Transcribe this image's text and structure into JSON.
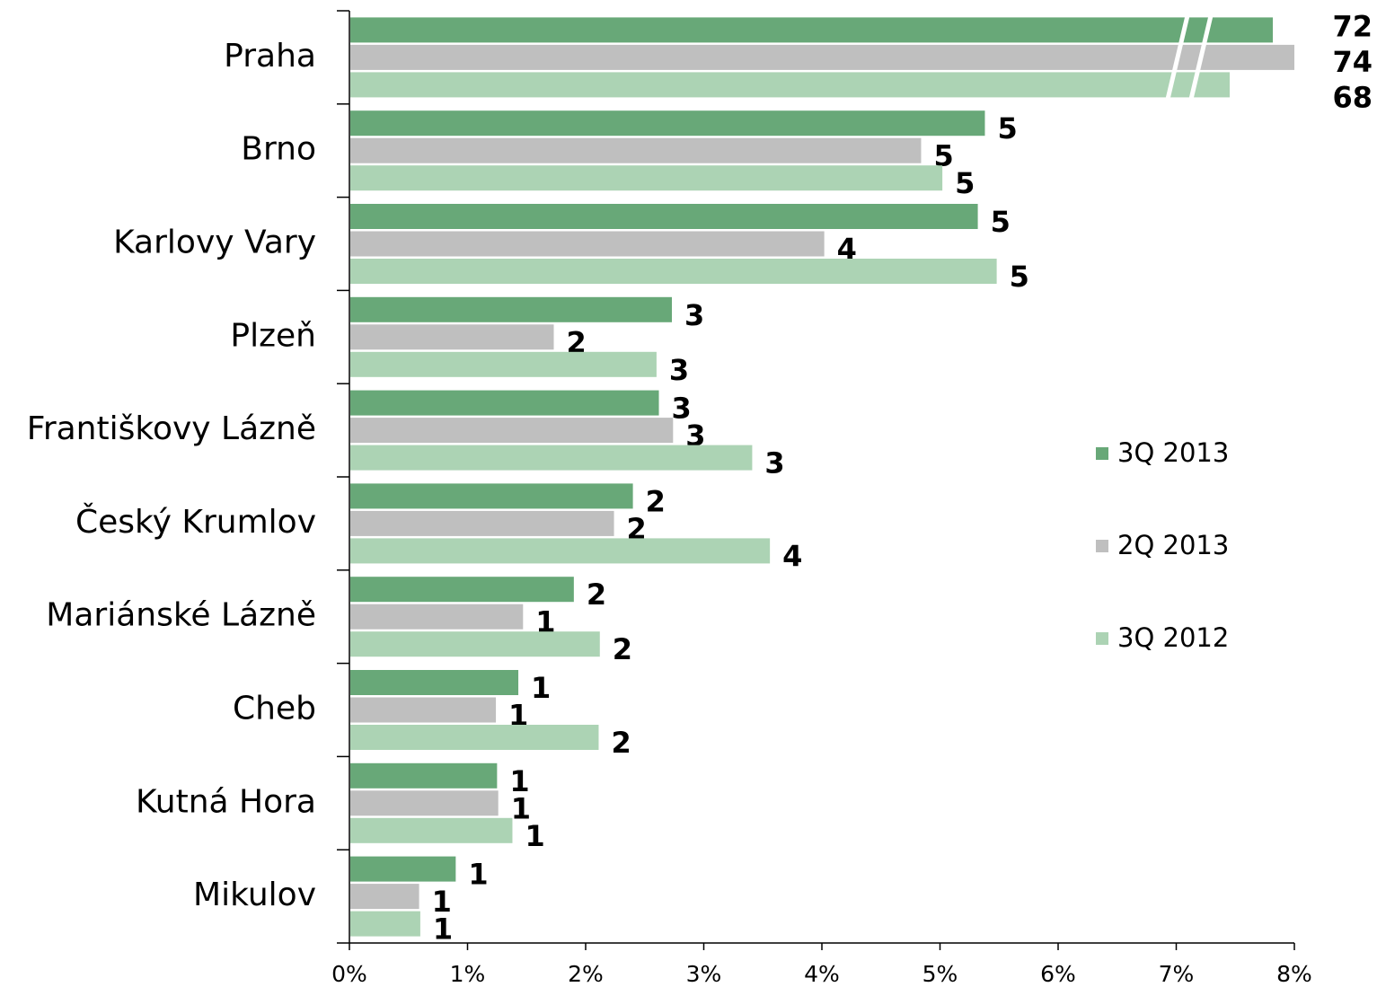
{
  "chart_data": {
    "type": "bar",
    "orientation": "horizontal",
    "categories": [
      "Praha",
      "Brno",
      "Karlovy Vary",
      "Plzeň",
      "Františkovy Lázně",
      "Český Krumlov",
      "Mariánské Lázně",
      "Cheb",
      "Kutná Hora",
      "Mikulov"
    ],
    "series": [
      {
        "name": "3Q 2013",
        "color": "#68a878",
        "values": [
          72,
          5.38,
          5.32,
          2.73,
          2.62,
          2.4,
          1.9,
          1.43,
          1.25,
          0.9
        ],
        "value_labels": [
          "72",
          "5",
          "5",
          "3",
          "3",
          "2",
          "2",
          "1",
          "1",
          "1"
        ]
      },
      {
        "name": "2Q 2013",
        "color": "#bfbfbf",
        "values": [
          74,
          4.84,
          4.02,
          1.73,
          2.74,
          2.24,
          1.47,
          1.24,
          1.26,
          0.59
        ],
        "value_labels": [
          "74",
          "5",
          "4",
          "2",
          "3",
          "2",
          "1",
          "1",
          "1",
          "1"
        ]
      },
      {
        "name": "3Q 2012",
        "color": "#acd3b4",
        "values": [
          68,
          5.02,
          5.48,
          2.6,
          3.41,
          3.56,
          2.12,
          2.11,
          1.38,
          0.6
        ],
        "value_labels": [
          "68",
          "5",
          "5",
          "3",
          "3",
          "4",
          "2",
          "2",
          "1",
          "1"
        ]
      }
    ],
    "xlim": [
      0,
      8
    ],
    "xticks": [
      {
        "value": 0,
        "label": "0%"
      },
      {
        "value": 1,
        "label": "1%"
      },
      {
        "value": 2,
        "label": "2%"
      },
      {
        "value": 3,
        "label": "3%"
      },
      {
        "value": 4,
        "label": "4%"
      },
      {
        "value": 5,
        "label": "5%"
      },
      {
        "value": 6,
        "label": "6%"
      },
      {
        "value": 7,
        "label": "7%"
      },
      {
        "value": 8,
        "label": "8%"
      }
    ],
    "grid": false,
    "legend": "right"
  }
}
